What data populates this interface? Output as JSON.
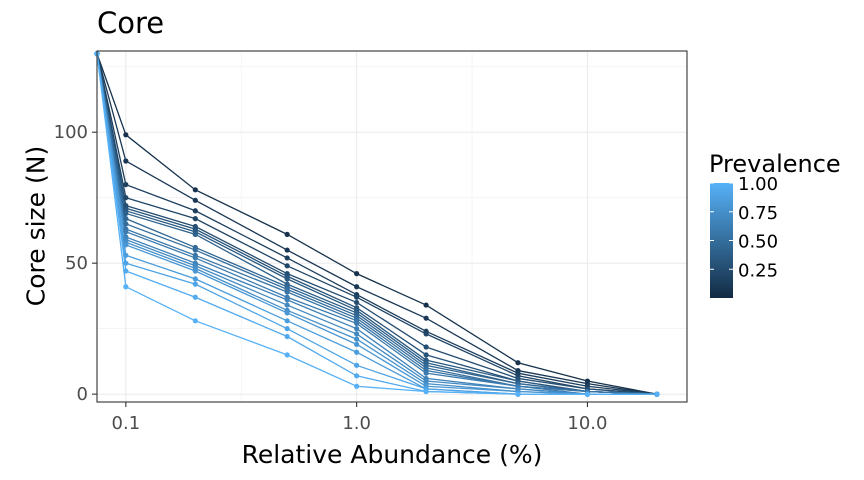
{
  "chart_data": {
    "type": "line",
    "title": "Core",
    "xlabel": "Relative Abundance (%)",
    "ylabel": "Core size (N)",
    "x_scale": "log",
    "xlim": [
      0.075,
      27
    ],
    "ylim": [
      -3,
      131
    ],
    "x_ticks": [
      0.1,
      1.0,
      10.0
    ],
    "x_tick_labels": [
      "0.1",
      "1.0",
      "10.0"
    ],
    "y_ticks": [
      0,
      50,
      100
    ],
    "y_tick_labels": [
      "0",
      "50",
      "100"
    ],
    "grid": true,
    "x": [
      0.075,
      0.1,
      0.2,
      0.5,
      1.0,
      2.0,
      5.0,
      10.0,
      20.0
    ],
    "legend": {
      "title": "Prevalence",
      "position": "right",
      "type": "colorbar",
      "range": [
        0.0,
        1.0
      ],
      "ticks": [
        1.0,
        0.75,
        0.5,
        0.25
      ],
      "tick_labels": [
        "1.00",
        "0.75",
        "0.50",
        "0.25"
      ],
      "color_low": "#132b43",
      "color_high": "#56b1f7"
    },
    "series": [
      {
        "prevalence": 0.05,
        "values": [
          130,
          99,
          78,
          61,
          46,
          34,
          12,
          5,
          0
        ]
      },
      {
        "prevalence": 0.1,
        "values": [
          130,
          89,
          74,
          55,
          41,
          29,
          9,
          4,
          0
        ]
      },
      {
        "prevalence": 0.15,
        "values": [
          130,
          80,
          70,
          52,
          38,
          24,
          8,
          3,
          0
        ]
      },
      {
        "prevalence": 0.2,
        "values": [
          130,
          75,
          67,
          49,
          37,
          23,
          7,
          2,
          0
        ]
      },
      {
        "prevalence": 0.25,
        "values": [
          130,
          72,
          64,
          46,
          35,
          18,
          6,
          2,
          0
        ]
      },
      {
        "prevalence": 0.3,
        "values": [
          130,
          71,
          63,
          45,
          33,
          15,
          5,
          1,
          0
        ]
      },
      {
        "prevalence": 0.35,
        "values": [
          130,
          70,
          62,
          44,
          32,
          13,
          5,
          1,
          0
        ]
      },
      {
        "prevalence": 0.4,
        "values": [
          130,
          69,
          61,
          42,
          31,
          12,
          4,
          1,
          0
        ]
      },
      {
        "prevalence": 0.45,
        "values": [
          130,
          67,
          56,
          41,
          30,
          11,
          4,
          1,
          0
        ]
      },
      {
        "prevalence": 0.5,
        "values": [
          130,
          65,
          55,
          40,
          29,
          10,
          3,
          1,
          0
        ]
      },
      {
        "prevalence": 0.55,
        "values": [
          130,
          63,
          53,
          39,
          28,
          9,
          3,
          1,
          0
        ]
      },
      {
        "prevalence": 0.6,
        "values": [
          130,
          62,
          52,
          37,
          27,
          8,
          3,
          0,
          0
        ]
      },
      {
        "prevalence": 0.65,
        "values": [
          130,
          60,
          50,
          36,
          25,
          6,
          2,
          0,
          0
        ]
      },
      {
        "prevalence": 0.7,
        "values": [
          130,
          59,
          49,
          34,
          23,
          5,
          2,
          0,
          0
        ]
      },
      {
        "prevalence": 0.75,
        "values": [
          130,
          58,
          48,
          32,
          21,
          4,
          1,
          0,
          0
        ]
      },
      {
        "prevalence": 0.8,
        "values": [
          130,
          57,
          47,
          31,
          19,
          3,
          1,
          0,
          0
        ]
      },
      {
        "prevalence": 0.85,
        "values": [
          130,
          53,
          44,
          28,
          16,
          2,
          0,
          0,
          0
        ]
      },
      {
        "prevalence": 0.9,
        "values": [
          130,
          50,
          42,
          25,
          11,
          2,
          0,
          0,
          0
        ]
      },
      {
        "prevalence": 0.95,
        "values": [
          130,
          47,
          37,
          22,
          7,
          1,
          0,
          0,
          0
        ]
      },
      {
        "prevalence": 1.0,
        "values": [
          130,
          41,
          28,
          15,
          3,
          1,
          0,
          0,
          0
        ]
      }
    ]
  }
}
